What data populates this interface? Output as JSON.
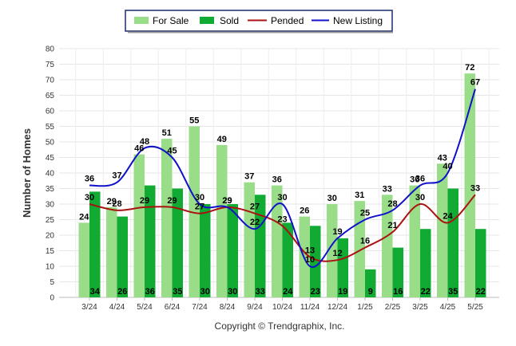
{
  "chart_data": {
    "type": "bar",
    "title": "",
    "xlabel": "",
    "ylabel": "Number of Homes",
    "ylim": [
      0,
      80
    ],
    "yticks": [
      0,
      5,
      10,
      15,
      20,
      25,
      30,
      35,
      40,
      45,
      50,
      55,
      60,
      65,
      70,
      75,
      80
    ],
    "grid": true,
    "legend_position": "top-center",
    "categories": [
      "3/24",
      "4/24",
      "5/24",
      "6/24",
      "7/24",
      "8/24",
      "9/24",
      "10/24",
      "11/24",
      "12/24",
      "1/25",
      "2/25",
      "3/25",
      "4/25",
      "5/25"
    ],
    "series": [
      {
        "name": "For Sale",
        "kind": "bar",
        "color": "#99dd88",
        "values": [
          24,
          29,
          46,
          51,
          55,
          49,
          37,
          36,
          26,
          30,
          31,
          33,
          36,
          43,
          72
        ]
      },
      {
        "name": "Sold",
        "kind": "bar",
        "color": "#11aa33",
        "values": [
          34,
          26,
          36,
          35,
          30,
          30,
          33,
          24,
          23,
          19,
          9,
          16,
          22,
          35,
          22
        ]
      },
      {
        "name": "Pended",
        "kind": "line",
        "color": "#aa1111",
        "values": [
          30,
          28,
          29,
          29,
          27,
          29,
          27,
          23,
          13,
          12,
          16,
          21,
          30,
          24,
          33
        ]
      },
      {
        "name": "New Listing",
        "kind": "line",
        "color": "#1111cc",
        "values": [
          36,
          37,
          48,
          45,
          30,
          29,
          22,
          30,
          10,
          19,
          25,
          28,
          36,
          40,
          67
        ]
      }
    ],
    "credit": "Copyright © Trendgraphix, Inc."
  }
}
